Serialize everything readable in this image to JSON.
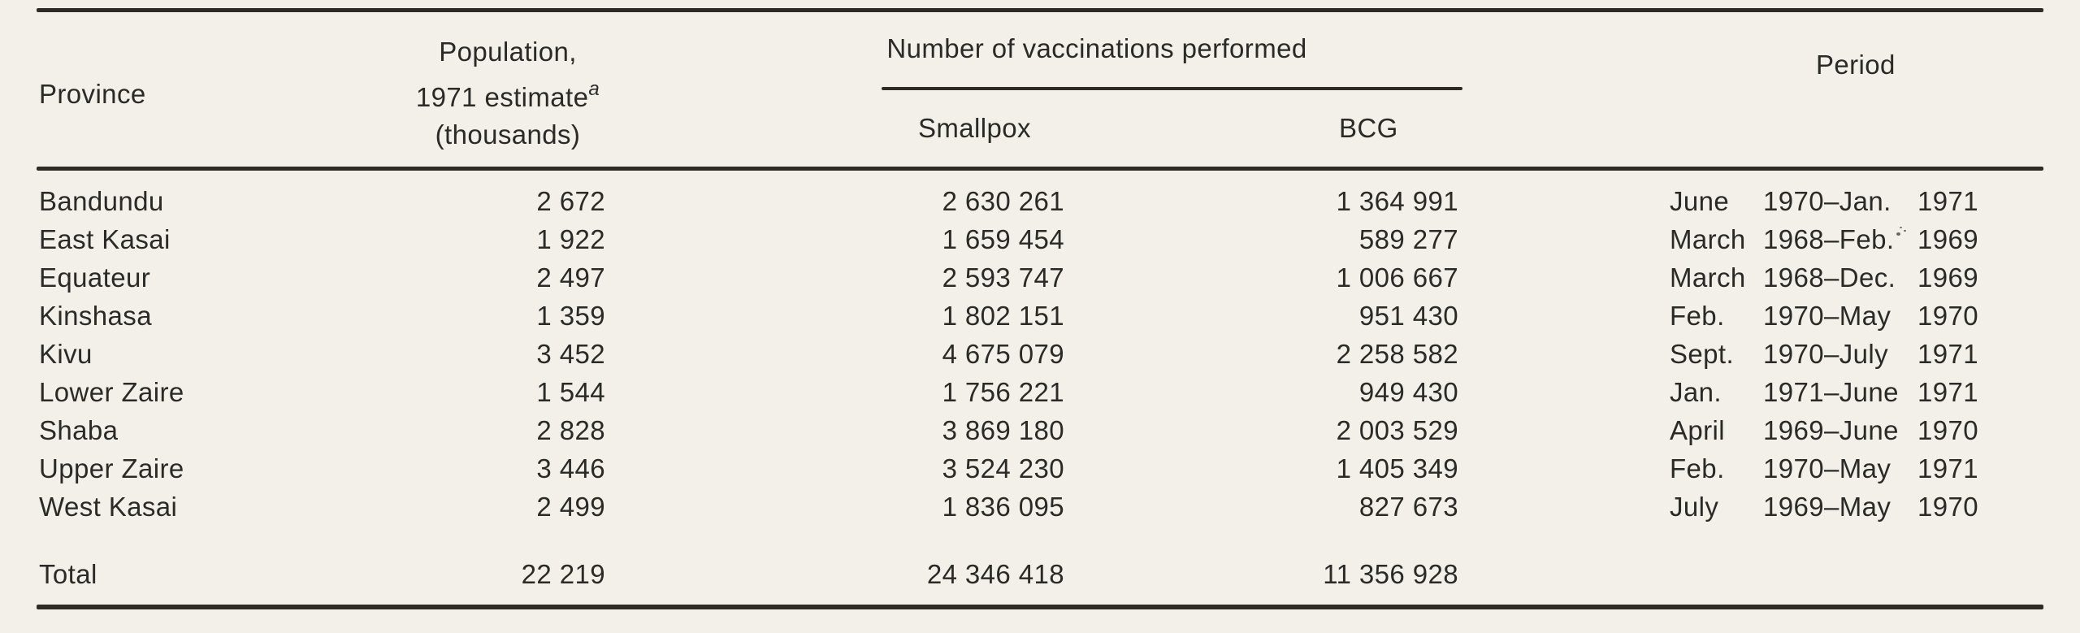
{
  "table": {
    "header": {
      "province": "Province",
      "population_line1": "Population,",
      "population_line2": "1971 estimate",
      "population_footnote_marker": "a",
      "population_line3": "(thousands)",
      "vaccinations_group": "Number of vaccinations performed",
      "smallpox": "Smallpox",
      "bcg": "BCG",
      "period": "Period"
    },
    "rows": [
      {
        "province": "Bandundu",
        "population": "2 672",
        "smallpox": "2 630 261",
        "bcg": "1 364 991",
        "period_start": "June",
        "period_range": "1970–Jan.",
        "period_end": "1971",
        "blot": false
      },
      {
        "province": "East Kasai",
        "population": "1 922",
        "smallpox": "1 659 454",
        "bcg": "589 277",
        "period_start": "March",
        "period_range": "1968–Feb.",
        "period_end": "1969",
        "blot": true
      },
      {
        "province": "Equateur",
        "population": "2 497",
        "smallpox": "2 593 747",
        "bcg": "1 006 667",
        "period_start": "March",
        "period_range": "1968–Dec.",
        "period_end": "1969",
        "blot": false
      },
      {
        "province": "Kinshasa",
        "population": "1 359",
        "smallpox": "1 802 151",
        "bcg": "951 430",
        "period_start": "Feb.",
        "period_range": "1970–May",
        "period_end": "1970",
        "blot": false
      },
      {
        "province": "Kivu",
        "population": "3 452",
        "smallpox": "4 675 079",
        "bcg": "2 258 582",
        "period_start": "Sept.",
        "period_range": "1970–July",
        "period_end": "1971",
        "blot": false
      },
      {
        "province": "Lower Zaire",
        "population": "1 544",
        "smallpox": "1 756 221",
        "bcg": "949 430",
        "period_start": "Jan.",
        "period_range": "1971–June",
        "period_end": "1971",
        "blot": false
      },
      {
        "province": "Shaba",
        "population": "2 828",
        "smallpox": "3 869 180",
        "bcg": "2 003 529",
        "period_start": "April",
        "period_range": "1969–June",
        "period_end": "1970",
        "blot": false
      },
      {
        "province": "Upper Zaire",
        "population": "3 446",
        "smallpox": "3 524 230",
        "bcg": "1 405 349",
        "period_start": "Feb.",
        "period_range": "1970–May",
        "period_end": "1971",
        "blot": false
      },
      {
        "province": "West Kasai",
        "population": "2 499",
        "smallpox": "1 836 095",
        "bcg": "827 673",
        "period_start": "July",
        "period_range": "1969–May",
        "period_end": "1970",
        "blot": false
      }
    ],
    "total": {
      "label": "Total",
      "population": "22 219",
      "smallpox": "24 346 418",
      "bcg": "11 356 928"
    }
  },
  "colors": {
    "paper": "#f2f0e9",
    "ink": "#2b2a27",
    "rule": "#2e2b26"
  }
}
